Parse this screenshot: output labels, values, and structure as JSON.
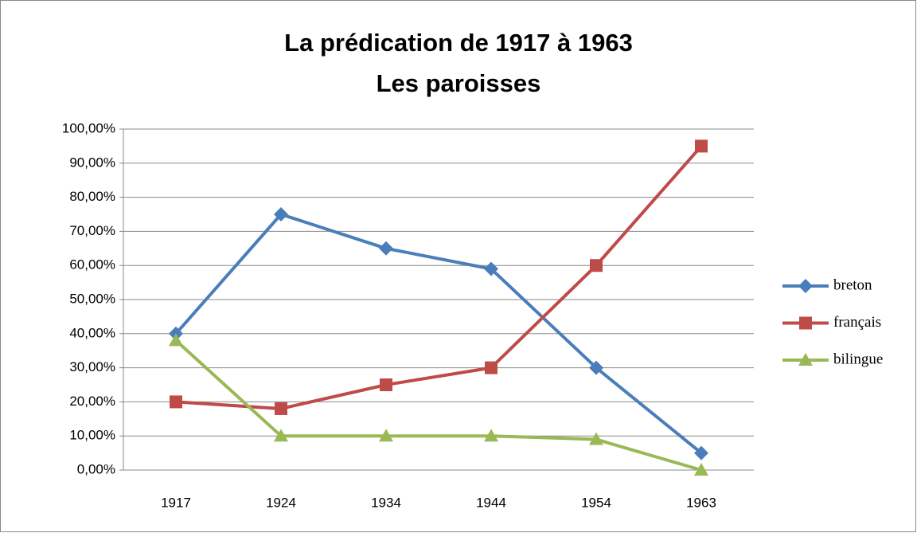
{
  "chart_data": {
    "type": "line",
    "title": "La prédication de 1917 à 1963",
    "subtitle": "Les paroisses",
    "categories": [
      "1917",
      "1924",
      "1934",
      "1944",
      "1954",
      "1963"
    ],
    "series": [
      {
        "name": "breton",
        "color": "#4a7ebb",
        "marker": "diamond",
        "values": [
          40,
          75,
          65,
          59,
          30,
          5
        ]
      },
      {
        "name": "français",
        "color": "#be4b48",
        "marker": "square",
        "values": [
          20,
          18,
          25,
          30,
          60,
          95
        ]
      },
      {
        "name": "bilingue",
        "color": "#98b954",
        "marker": "triangle",
        "values": [
          38,
          10,
          10,
          10,
          9,
          0
        ]
      }
    ],
    "ylim": [
      0,
      100
    ],
    "yticks": [
      {
        "value": 0,
        "label": "0,00%"
      },
      {
        "value": 10,
        "label": "10,00%"
      },
      {
        "value": 20,
        "label": "20,00%"
      },
      {
        "value": 30,
        "label": "30,00%"
      },
      {
        "value": 40,
        "label": "40,00%"
      },
      {
        "value": 50,
        "label": "50,00%"
      },
      {
        "value": 60,
        "label": "60,00%"
      },
      {
        "value": 70,
        "label": "70,00%"
      },
      {
        "value": 80,
        "label": "80,00%"
      },
      {
        "value": 90,
        "label": "90,00%"
      },
      {
        "value": 100,
        "label": "100,00%"
      }
    ],
    "grid": true,
    "legend": "right"
  }
}
